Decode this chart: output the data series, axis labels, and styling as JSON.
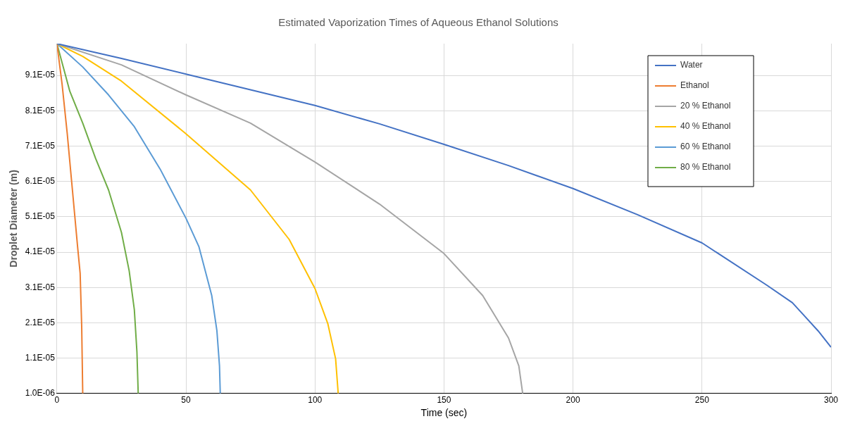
{
  "chart_data": {
    "type": "line",
    "title": "Estimated Vaporization Times of Aqueous Ethanol Solutions",
    "xlabel": "Time (sec)",
    "ylabel": "Droplet Diameter (m)",
    "xlim": [
      0,
      300
    ],
    "xticks": [
      0,
      50,
      100,
      150,
      200,
      250,
      300
    ],
    "ylim": [
      1e-06,
      0.0001
    ],
    "yticks": [
      {
        "value": 1e-06,
        "label": "1.0E-06"
      },
      {
        "value": 1.1e-05,
        "label": "1.1E-05"
      },
      {
        "value": 2.1e-05,
        "label": "2.1E-05"
      },
      {
        "value": 3.1e-05,
        "label": "3.1E-05"
      },
      {
        "value": 4.1e-05,
        "label": "4.1E-05"
      },
      {
        "value": 5.1e-05,
        "label": "5.1E-05"
      },
      {
        "value": 6.1e-05,
        "label": "6.1E-05"
      },
      {
        "value": 7.1e-05,
        "label": "7.1E-05"
      },
      {
        "value": 8.1e-05,
        "label": "8.1E-05"
      },
      {
        "value": 9.1e-05,
        "label": "9.1E-05"
      }
    ],
    "grid": true,
    "legend": "top right",
    "series": [
      {
        "name": "Water",
        "color": "#4472c4",
        "x": [
          0,
          25,
          50,
          100,
          125,
          150,
          175,
          200,
          225,
          250,
          275,
          285,
          290,
          295,
          300
        ],
        "values": [
          0.0001,
          9.58e-05,
          9.14e-05,
          8.25e-05,
          7.73e-05,
          7.15e-05,
          6.55e-05,
          5.9e-05,
          5.16e-05,
          4.36e-05,
          3.17e-05,
          2.67e-05,
          2.27e-05,
          1.87e-05,
          1.41e-05
        ]
      },
      {
        "name": "Ethanol",
        "color": "#ed7d31",
        "x": [
          0,
          2,
          4,
          6,
          8,
          9,
          9.6,
          10
        ],
        "values": [
          0.0001,
          8.85e-05,
          7.45e-05,
          5.86e-05,
          4.26e-05,
          3.5e-05,
          2e-05,
          1e-06
        ]
      },
      {
        "name": "20 % Ethanol",
        "color": "#a5a5a5",
        "x": [
          0,
          25,
          50,
          75,
          100,
          125,
          150,
          165,
          175,
          179,
          180.5
        ],
        "values": [
          0.0001,
          9.4e-05,
          8.55e-05,
          7.75e-05,
          6.65e-05,
          5.46e-05,
          4.06e-05,
          2.87e-05,
          1.67e-05,
          8.8e-06,
          1e-06
        ]
      },
      {
        "name": "40 % Ethanol",
        "color": "#ffc000",
        "x": [
          0,
          10,
          25,
          50,
          75,
          90,
          100,
          105,
          108,
          109
        ],
        "values": [
          0.0001,
          9.64e-05,
          8.94e-05,
          7.45e-05,
          5.86e-05,
          4.46e-05,
          3.07e-05,
          2.07e-05,
          1.08e-05,
          1e-06
        ]
      },
      {
        "name": "60 % Ethanol",
        "color": "#5b9bd5",
        "x": [
          0,
          10,
          20,
          30,
          40,
          50,
          55,
          60,
          62,
          63,
          63.3
        ],
        "values": [
          0.0001,
          9.34e-05,
          8.55e-05,
          7.65e-05,
          6.45e-05,
          5.06e-05,
          4.26e-05,
          2.87e-05,
          1.87e-05,
          8.8e-06,
          1e-06
        ]
      },
      {
        "name": "80 % Ethanol",
        "color": "#70ad47",
        "x": [
          0,
          5,
          10,
          15,
          20,
          25,
          28,
          30,
          31,
          31.5
        ],
        "values": [
          0.0001,
          8.65e-05,
          7.75e-05,
          6.75e-05,
          5.86e-05,
          4.66e-05,
          3.57e-05,
          2.47e-05,
          1.28e-05,
          1e-06
        ]
      }
    ]
  }
}
